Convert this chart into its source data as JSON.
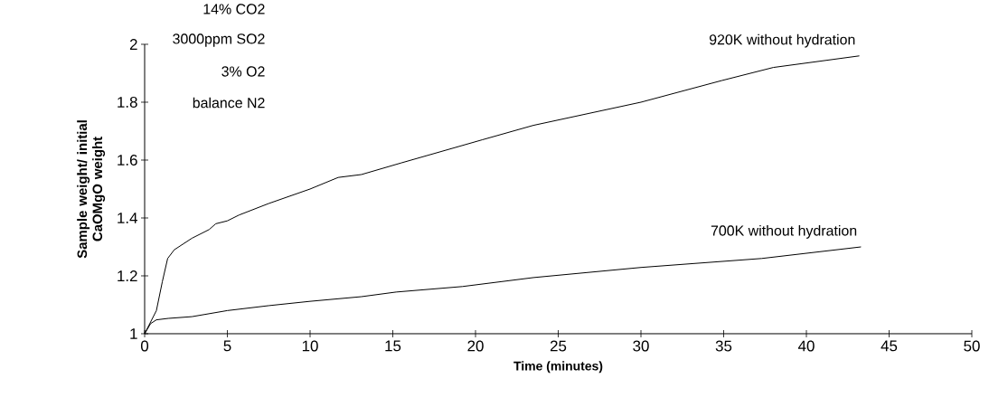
{
  "chart_data": {
    "type": "line",
    "xlabel": "Time (minutes)",
    "ylabel": "Sample weight/ initial CaOMgO weight",
    "annotations": [
      "14% CO2",
      "3000ppm SO2",
      "3% O2",
      "balance N2"
    ],
    "series": [
      {
        "name": "920K without hydration",
        "color": "#000000",
        "x": [
          0,
          0.71,
          1.07,
          1.39,
          1.79,
          2.86,
          3.9,
          4.3,
          5,
          5.7,
          7.5,
          10,
          11.7,
          13.1,
          15.5,
          20.4,
          23.5,
          30.0,
          34.9,
          38.0,
          43.2
        ],
        "values": [
          1,
          1.08,
          1.18,
          1.26,
          1.29,
          1.33,
          1.36,
          1.38,
          1.39,
          1.41,
          1.45,
          1.5,
          1.54,
          1.55,
          1.59,
          1.67,
          1.72,
          1.8,
          1.875,
          1.92,
          1.96
        ]
      },
      {
        "name": "700K without hydration",
        "color": "#000000",
        "x": [
          0,
          0.36,
          0.71,
          1.43,
          2.86,
          5,
          7.5,
          10,
          13.1,
          15.2,
          19.2,
          23.5,
          30.0,
          37.3,
          43.3
        ],
        "values": [
          1,
          1.035,
          1.048,
          1.053,
          1.059,
          1.08,
          1.097,
          1.112,
          1.128,
          1.144,
          1.163,
          1.194,
          1.229,
          1.26,
          1.3
        ]
      }
    ],
    "xlim": [
      0,
      50
    ],
    "ylim": [
      1,
      2
    ],
    "xticks": [
      0,
      5,
      10,
      15,
      20,
      25,
      30,
      35,
      40,
      45,
      50
    ],
    "yticks": [
      1,
      1.2,
      1.4,
      1.6,
      1.8,
      2
    ],
    "grid": false,
    "legend": false,
    "marker": "none",
    "line_style": "solid"
  }
}
